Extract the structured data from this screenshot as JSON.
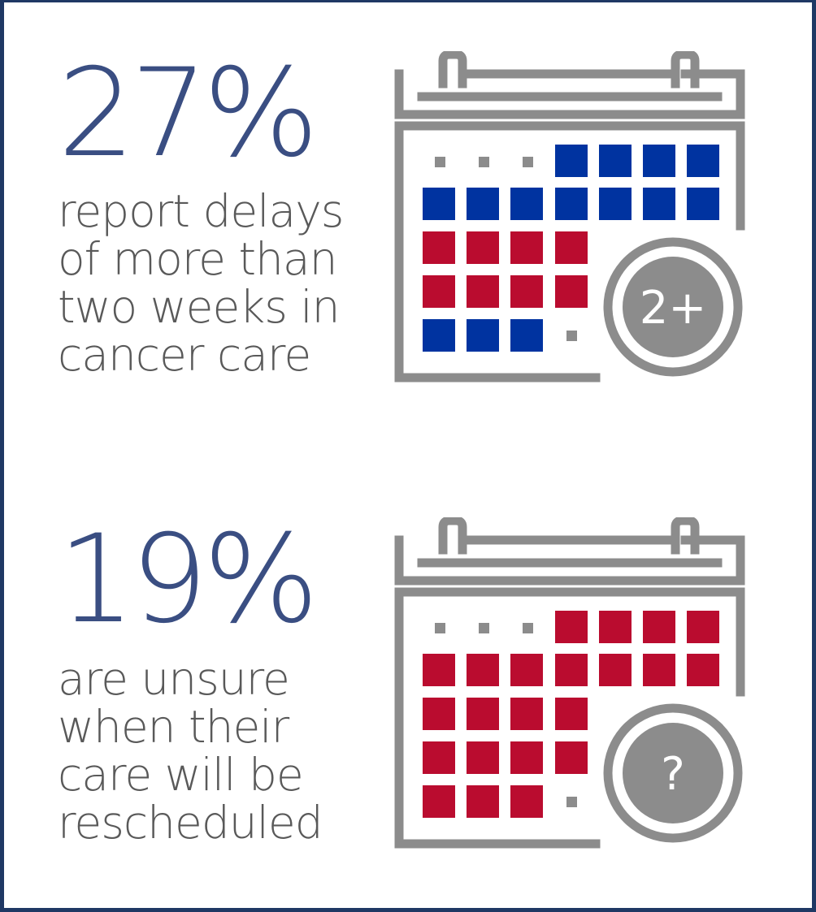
{
  "stats": [
    {
      "percent": "27%",
      "description_lines": [
        "report delays",
        "of more than",
        "two weeks in",
        "cancer care"
      ],
      "badge": "2+",
      "calendar_icon": "calendar-icon"
    },
    {
      "percent": "19%",
      "description_lines": [
        "are unsure",
        "when their",
        "care will be",
        "rescheduled"
      ],
      "badge": "?",
      "calendar_icon": "calendar-icon"
    }
  ],
  "colors": {
    "border": "#1f3864",
    "percent_text": "#3a4e82",
    "body_text": "#595959",
    "calendar_gray": "#8c8c8c",
    "blue": "#0033a0",
    "red": "#ba0c2f"
  }
}
